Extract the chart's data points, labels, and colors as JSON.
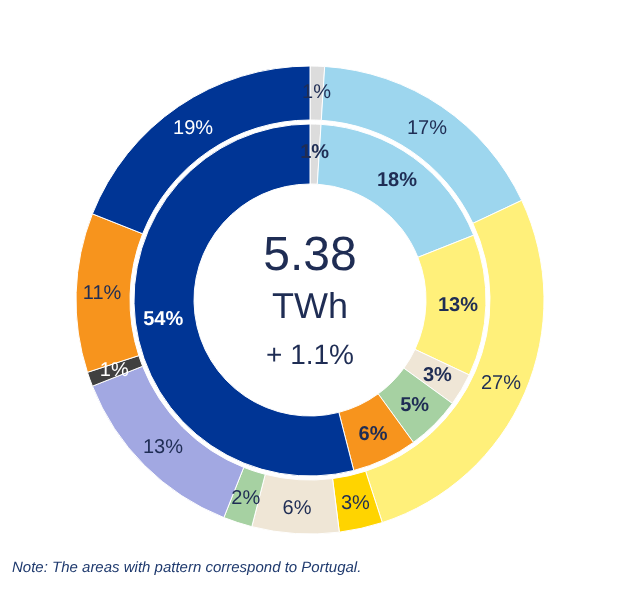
{
  "chart_data": {
    "type": "donut",
    "series": [
      {
        "values": [
          1,
          17,
          27,
          3,
          6,
          2,
          13,
          1,
          11,
          19
        ],
        "value_labels": [
          "1%",
          "17%",
          "27%",
          "3%",
          "6%",
          "2%",
          "13%",
          "1%",
          "11%",
          "19%"
        ],
        "colors": [
          "#dcdcdc",
          "#9dd6ee",
          "#fff07a",
          "#ffd400",
          "#efe6d6",
          "#a6d1a2",
          "#a2a8e2",
          "#404040",
          "#f7941d",
          "#003595"
        ]
      },
      {
        "values": [
          1,
          18,
          13,
          3,
          5,
          6,
          54
        ],
        "value_labels": [
          "1%",
          "18%",
          "13%",
          "3%",
          "5%",
          "6%",
          "54%"
        ],
        "colors": [
          "#dcdcdc",
          "#9dd6ee",
          "#fff07a",
          "#efe6d6",
          "#a6d1a2",
          "#f7941d",
          "#003595"
        ]
      }
    ],
    "annotations": [
      "5.38",
      "TWh",
      "+ 1.1%",
      "Note: The  areas with pattern correspond  to Portugal."
    ]
  }
}
